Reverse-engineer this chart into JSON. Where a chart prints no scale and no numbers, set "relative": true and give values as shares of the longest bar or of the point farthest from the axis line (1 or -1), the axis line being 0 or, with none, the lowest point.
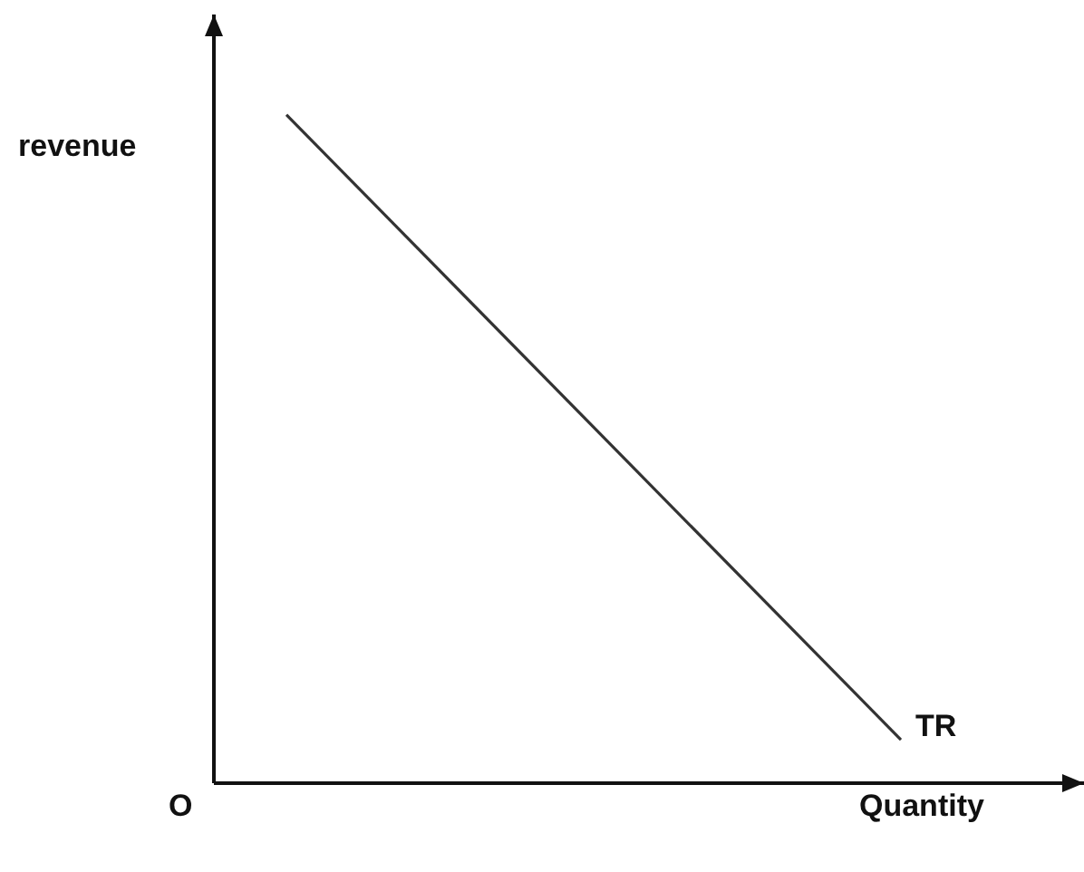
{
  "chart_data": {
    "type": "line",
    "xlabel": "Quantity",
    "ylabel": "revenue",
    "annotations": [
      "O"
    ],
    "relative": true,
    "categories": [
      null,
      null
    ],
    "series": [
      {
        "name": "TR",
        "color": "#333333",
        "values": [
          1,
          0.065
        ]
      }
    ],
    "marker": "none",
    "grid": false,
    "legend": false
  }
}
